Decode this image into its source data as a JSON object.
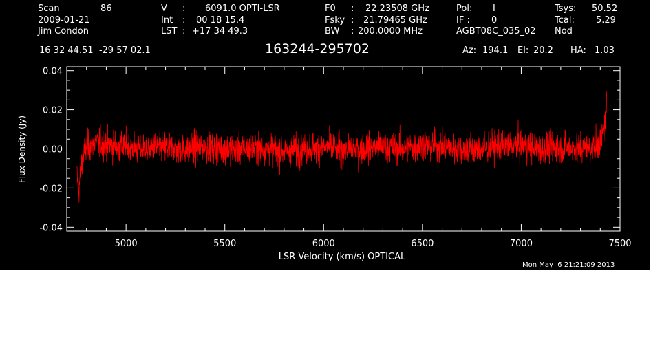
{
  "header": {
    "scan_label": "Scan",
    "scan_number": "86",
    "date": "2009-01-21",
    "observer": "Jim Condon",
    "v_label": "V",
    "v_sep": ":",
    "v_value": "6091.0 OPTI-LSR",
    "int_label": "Int",
    "int_sep": ":",
    "int_value": "00 18 15.4",
    "lst_label": "LST",
    "lst_sep": ":",
    "lst_value": "+17 34 49.3",
    "f0_label": "F0",
    "f0_sep": ":",
    "f0_value": "22.23508 GHz",
    "fsky_label": "Fsky",
    "fsky_sep": ":",
    "fsky_value": "21.79465 GHz",
    "bw_label": "BW",
    "bw_sep": ":",
    "bw_value": "200.0000 MHz",
    "pol_label": "Pol:",
    "pol_value": "I",
    "if_label": "IF :",
    "if_value": "0",
    "project": "AGBT08C_035_02",
    "tsys_label": "Tsys:",
    "tsys_value": "50.52",
    "tcal_label": "Tcal:",
    "tcal_value": "5.29",
    "mode": "Nod",
    "coords": "16 32 44.51  -29 57 02.1",
    "source": "163244-295702",
    "az_label": "Az:",
    "az_value": "194.1",
    "el_label": "El:",
    "el_value": "20.2",
    "ha_label": "HA:",
    "ha_value": "1.03"
  },
  "timestamp": "Mon May  6 21:21:09 2013",
  "colors": {
    "background": "#000000",
    "axes": "#ffffff",
    "trace": "#ff0000",
    "page": "#ffffff"
  },
  "chart_data": {
    "type": "line",
    "title": "163244-295702",
    "xlabel": "LSR Velocity (km/s) OPTICAL",
    "ylabel": "Flux Density (Jy)",
    "xlim": [
      4700,
      7500
    ],
    "ylim": [
      -0.042,
      0.042
    ],
    "xticks": [
      5000,
      5500,
      6000,
      6500,
      7000,
      7500
    ],
    "xtick_labels": [
      "5000",
      "5500",
      "6000",
      "6500",
      "7000",
      "7500"
    ],
    "yticks": [
      -0.04,
      -0.02,
      0.0,
      0.02,
      0.04
    ],
    "ytick_labels": [
      "-0.04",
      "-0.02",
      "0.00",
      "0.02",
      "0.04"
    ],
    "grid": false,
    "series": [
      {
        "color": "#ff0000",
        "x": [
          4752,
          4760,
          4770,
          4780,
          4800,
          4850,
          4900,
          5000,
          5100,
          5200,
          5300,
          5400,
          5500,
          5600,
          5700,
          5800,
          5900,
          6000,
          6100,
          6200,
          6300,
          6400,
          6500,
          6600,
          6700,
          6800,
          6900,
          7000,
          7100,
          7200,
          7300,
          7350,
          7390,
          7410,
          7425,
          7433
        ],
        "y": [
          -0.014,
          -0.022,
          -0.012,
          -0.004,
          0.001,
          0.003,
          0.002,
          0.001,
          0.0,
          0.001,
          0.0,
          0.001,
          0.0,
          0.0,
          0.0,
          -0.001,
          0.0,
          0.001,
          0.0,
          0.0,
          0.001,
          0.0,
          0.002,
          0.001,
          0.0,
          0.0,
          0.001,
          0.002,
          0.0,
          0.001,
          0.0,
          0.001,
          0.002,
          0.006,
          0.015,
          0.024
        ],
        "noise_rms_jy": 0.0055
      }
    ]
  }
}
